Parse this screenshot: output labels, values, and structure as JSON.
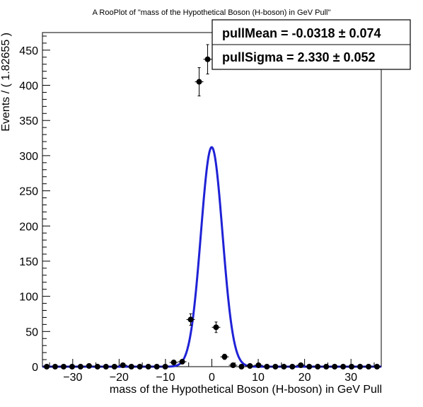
{
  "chart_data": {
    "type": "scatter",
    "title": "A RooPlot of \"mass of the Hypothetical Boson (H-boson) in GeV Pull\"",
    "xlabel": "mass of the Hypothetical Boson (H-boson) in GeV Pull",
    "ylabel": "Events / ( 1.82655 )",
    "xlim": [
      -36.53,
      36.53
    ],
    "ylim": [
      0,
      475
    ],
    "x_ticks": [
      -30,
      -20,
      -10,
      0,
      10,
      20,
      30
    ],
    "x_tick_labels": [
      "−30",
      "−20",
      "−10",
      "0",
      "10",
      "20",
      "30"
    ],
    "y_ticks": [
      0,
      50,
      100,
      150,
      200,
      250,
      300,
      350,
      400,
      450
    ],
    "y_tick_labels": [
      "0",
      "50",
      "100",
      "150",
      "200",
      "250",
      "300",
      "350",
      "400",
      "450"
    ],
    "bin_width": 1.82655,
    "series": [
      {
        "kind": "data-points-with-errors",
        "color": "#000000",
        "x": [
          -35.61,
          -33.79,
          -31.96,
          -30.13,
          -28.31,
          -26.48,
          -24.66,
          -22.83,
          -21.0,
          -19.18,
          -17.35,
          -15.53,
          -13.7,
          -11.87,
          -10.05,
          -8.22,
          -6.39,
          -4.57,
          -2.74,
          -0.91,
          0.91,
          2.74,
          4.57,
          6.39,
          8.22,
          10.05,
          11.87,
          13.7,
          15.53,
          17.35,
          19.18,
          21.0,
          22.83,
          24.66,
          26.48,
          28.31,
          30.13,
          31.96,
          33.79,
          35.61
        ],
        "y": [
          0,
          0,
          0,
          0,
          0,
          1,
          0,
          0,
          0,
          2,
          0,
          0,
          0,
          0,
          0,
          6,
          7,
          67,
          405,
          437,
          56,
          14,
          2,
          0,
          1,
          2,
          0,
          0,
          0,
          0,
          2,
          0,
          0,
          0,
          0,
          0,
          0,
          0,
          0,
          0
        ]
      },
      {
        "kind": "fit-curve",
        "color": "#1f22d6",
        "model": "gaussian",
        "peak": 312,
        "mean": -0.0318,
        "sigma": 2.33
      }
    ],
    "stats_box": {
      "line1": "pullMean = -0.0318 ± 0.074",
      "line2": "pullSigma =  2.330 ± 0.052"
    }
  }
}
